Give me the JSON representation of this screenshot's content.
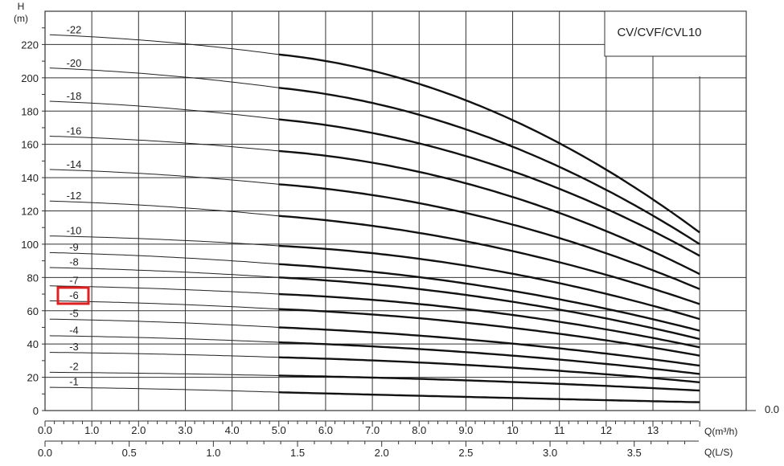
{
  "chart_data": {
    "type": "line",
    "title": "CV/CVF/CVL10",
    "ylabel_top": "H",
    "ylabel_unit": "(m)",
    "xlabel_q_m3h": "Q(m³/h)",
    "xlabel_q_ls": "Q(L/S)",
    "xlim": [
      0,
      14
    ],
    "ylim": [
      0,
      240
    ],
    "grid": true,
    "y_ticks": [
      0,
      20,
      40,
      60,
      80,
      100,
      120,
      140,
      160,
      180,
      200,
      220
    ],
    "y_tick_labels": [
      "0",
      "20",
      "40",
      "60",
      "80",
      "100",
      "120",
      "140",
      "160",
      "180",
      "200",
      "220"
    ],
    "x_ticks": [
      0,
      1,
      2,
      3,
      4,
      5,
      6,
      7,
      8,
      9,
      10,
      11,
      12,
      13
    ],
    "x_tick_labels": [
      "0.0",
      "1.0",
      "2.0",
      "3.0",
      "4.0",
      "5.0",
      "6.0",
      "7.0",
      "8.0",
      "9.0",
      "10",
      "11",
      "12",
      "13"
    ],
    "x_end_label": "0.0",
    "x2_ticks": [
      0,
      0.5,
      1.0,
      1.5,
      2.0,
      2.5,
      3.0,
      3.5
    ],
    "x2_tick_labels": [
      "0.0",
      "0.5",
      "1.0",
      "1.5",
      "2.0",
      "2.5",
      "3.0",
      "3.5"
    ],
    "x2_unit_factor": 3.6,
    "x_bold_from": 5,
    "series": [
      {
        "name": "-1",
        "shutoff": 14,
        "values_at_5": 11,
        "values_at_14": 5
      },
      {
        "name": "-2",
        "shutoff": 23,
        "values_at_5": 21,
        "values_at_14": 12
      },
      {
        "name": "-3",
        "shutoff": 35,
        "values_at_5": 32,
        "values_at_14": 17
      },
      {
        "name": "-4",
        "shutoff": 45,
        "values_at_5": 41,
        "values_at_14": 22
      },
      {
        "name": "-5",
        "shutoff": 55,
        "values_at_5": 50,
        "values_at_14": 27
      },
      {
        "name": "-6",
        "shutoff": 66,
        "values_at_5": 61,
        "values_at_14": 33
      },
      {
        "name": "-7",
        "shutoff": 75,
        "values_at_5": 70,
        "values_at_14": 38
      },
      {
        "name": "-8",
        "shutoff": 86,
        "values_at_5": 80,
        "values_at_14": 43
      },
      {
        "name": "-9",
        "shutoff": 95,
        "values_at_5": 88,
        "values_at_14": 48
      },
      {
        "name": "-10",
        "shutoff": 105,
        "values_at_5": 99,
        "values_at_14": 55
      },
      {
        "name": "-12",
        "shutoff": 126,
        "values_at_5": 117,
        "values_at_14": 64
      },
      {
        "name": "-14",
        "shutoff": 145,
        "values_at_5": 136,
        "values_at_14": 73
      },
      {
        "name": "-16",
        "shutoff": 165,
        "values_at_5": 156,
        "values_at_14": 82
      },
      {
        "name": "-18",
        "shutoff": 186,
        "values_at_5": 175,
        "values_at_14": 93
      },
      {
        "name": "-20",
        "shutoff": 206,
        "values_at_5": 194,
        "values_at_14": 100
      },
      {
        "name": "-22",
        "shutoff": 226,
        "values_at_5": 214,
        "values_at_14": 107
      }
    ]
  },
  "highlight": {
    "label": "-6",
    "color": "#e02020"
  }
}
